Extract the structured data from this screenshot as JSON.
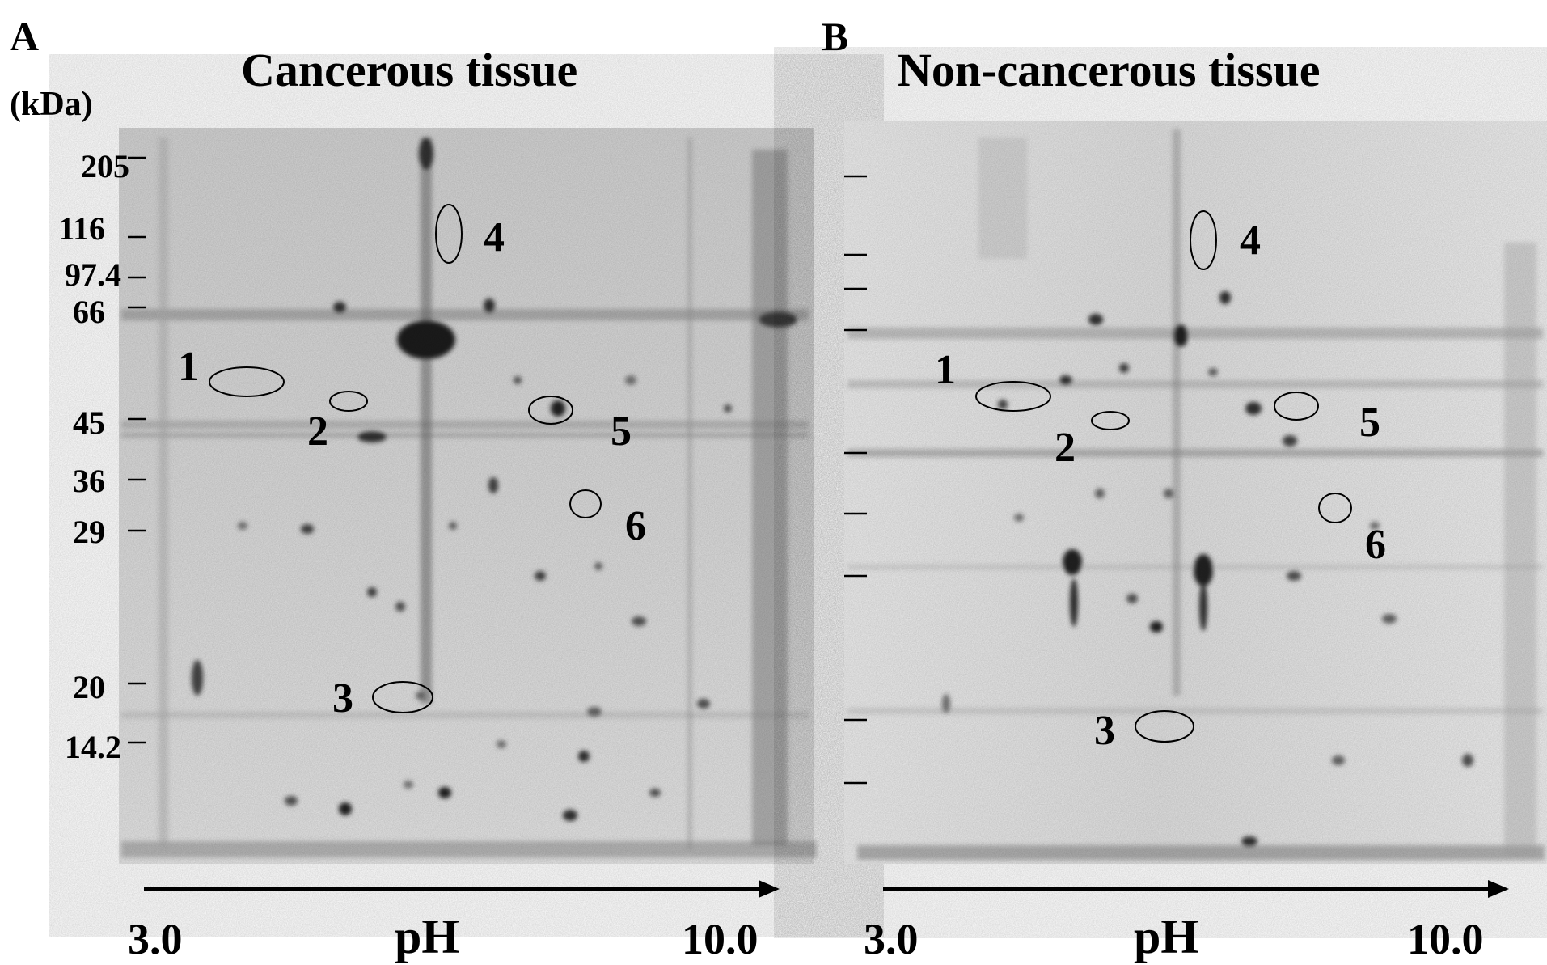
{
  "panel_a": {
    "letter": "A",
    "title": "Cancerous tissue",
    "mw_unit": "(kDa)",
    "mw_markers": [
      "205",
      "116",
      "97.4",
      "66",
      "45",
      "36",
      "29",
      "20",
      "14.2"
    ],
    "spots": [
      "1",
      "2",
      "3",
      "4",
      "5",
      "6"
    ],
    "ph_start": "3.0",
    "ph_label": "pH",
    "ph_end": "10.0"
  },
  "panel_b": {
    "letter": "B",
    "title": "Non-cancerous tissue",
    "spots": [
      "1",
      "2",
      "3",
      "4",
      "5",
      "6"
    ],
    "ph_start": "3.0",
    "ph_label": "pH",
    "ph_end": "10.0"
  }
}
